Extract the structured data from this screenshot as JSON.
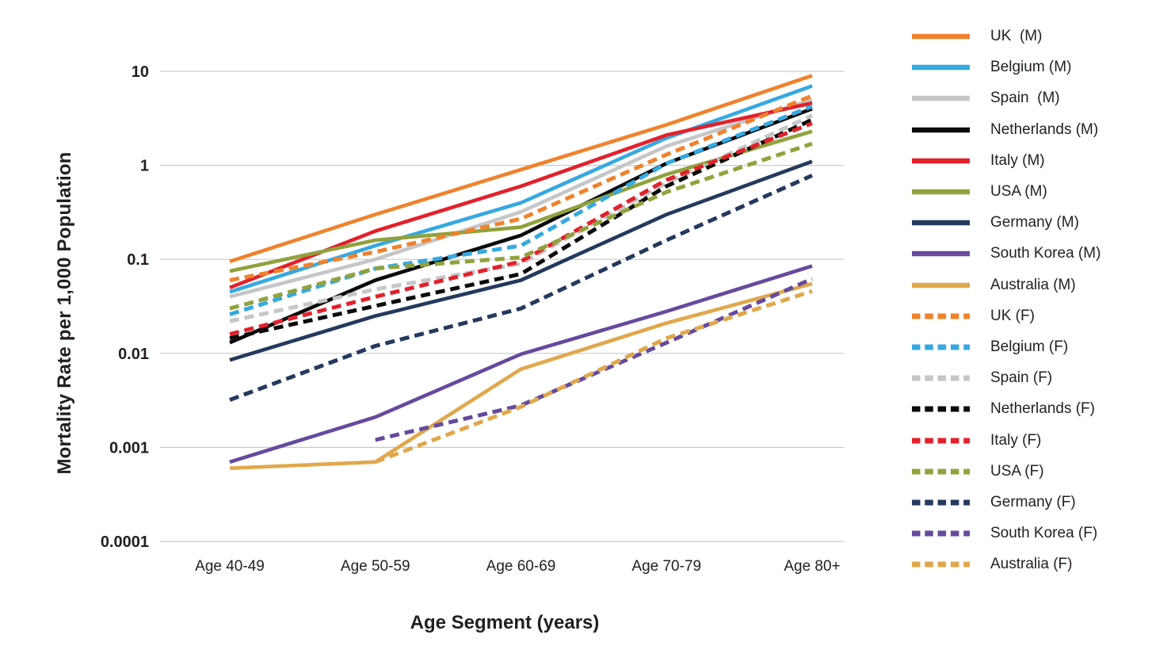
{
  "page": {
    "background": "#FFFFFF",
    "text_color": "#231F20",
    "grid_color": "#C9CACB"
  },
  "chart_data": {
    "type": "line",
    "title": "",
    "x_axis": {
      "title": "Age Segment (years)",
      "categories": [
        "Age 40-49",
        "Age 50-59",
        "Age 60-69",
        "Age 70-79",
        "Age 80+"
      ]
    },
    "y_axis": {
      "title": "Mortality Rate per 1,000 Population",
      "scale": "log",
      "range": [
        0.0001,
        10
      ],
      "ticks": [
        {
          "label": "10",
          "value": 10
        },
        {
          "label": "1",
          "value": 1
        },
        {
          "label": "0.1",
          "value": 0.1
        },
        {
          "label": "0.01",
          "value": 0.01
        },
        {
          "label": "0.001",
          "value": 0.001
        },
        {
          "label": "0.0001",
          "value": 0.0001
        }
      ]
    },
    "grid": true,
    "legend_position": "right",
    "series": [
      {
        "name": "UK  (M)",
        "country": "UK",
        "sex": "M",
        "color": "#F0822C",
        "dash": false,
        "values": [
          0.095,
          0.3,
          0.9,
          2.7,
          9
        ]
      },
      {
        "name": "Belgium (M)",
        "country": "Belgium",
        "sex": "M",
        "color": "#35A9E1",
        "dash": false,
        "values": [
          0.045,
          0.14,
          0.4,
          1.95,
          7
        ]
      },
      {
        "name": "Spain  (M)",
        "country": "Spain",
        "sex": "M",
        "color": "#C5C6C8",
        "dash": false,
        "values": [
          0.04,
          0.1,
          0.32,
          1.6,
          5
        ]
      },
      {
        "name": "Netherlands (M)",
        "country": "Netherlands",
        "sex": "M",
        "color": "#0B0B0B",
        "dash": false,
        "values": [
          0.013,
          0.06,
          0.18,
          1.05,
          4
        ]
      },
      {
        "name": "Italy (M)",
        "country": "Italy",
        "sex": "M",
        "color": "#E3212B",
        "dash": false,
        "values": [
          0.05,
          0.2,
          0.6,
          2.1,
          4.6
        ]
      },
      {
        "name": "USA (M)",
        "country": "USA",
        "sex": "M",
        "color": "#90A23C",
        "dash": false,
        "values": [
          0.075,
          0.16,
          0.22,
          0.8,
          2.3
        ]
      },
      {
        "name": "Germany (M)",
        "country": "Germany",
        "sex": "M",
        "color": "#24395E",
        "dash": false,
        "values": [
          0.0085,
          0.025,
          0.06,
          0.3,
          1.1
        ]
      },
      {
        "name": "South Korea (M)",
        "country": "South Korea",
        "sex": "M",
        "color": "#664A9E",
        "dash": false,
        "values": [
          0.0007,
          0.0021,
          0.0098,
          0.028,
          0.085
        ]
      },
      {
        "name": "Australia (M)",
        "country": "Australia",
        "sex": "M",
        "color": "#E1A74B",
        "dash": false,
        "values": [
          0.0006,
          0.0007,
          0.0068,
          0.021,
          0.055
        ]
      },
      {
        "name": "UK (F)",
        "country": "UK",
        "sex": "F",
        "color": "#F0822C",
        "dash": true,
        "values": [
          0.06,
          0.12,
          0.27,
          1.3,
          5.5
        ]
      },
      {
        "name": "Belgium (F)",
        "country": "Belgium",
        "sex": "F",
        "color": "#35A9E1",
        "dash": true,
        "values": [
          0.026,
          0.08,
          0.14,
          1.05,
          4.25
        ]
      },
      {
        "name": "Spain (F)",
        "country": "Spain",
        "sex": "F",
        "color": "#C5C6C8",
        "dash": true,
        "values": [
          0.022,
          0.048,
          0.09,
          0.65,
          3.4
        ]
      },
      {
        "name": "Netherlands (F)",
        "country": "Netherlands",
        "sex": "F",
        "color": "#0B0B0B",
        "dash": true,
        "values": [
          0.0145,
          0.032,
          0.07,
          0.6,
          3.05
        ]
      },
      {
        "name": "Italy (F)",
        "country": "Italy",
        "sex": "F",
        "color": "#E3212B",
        "dash": true,
        "values": [
          0.016,
          0.04,
          0.095,
          0.7,
          2.8
        ]
      },
      {
        "name": "USA (F)",
        "country": "USA",
        "sex": "F",
        "color": "#90A23C",
        "dash": true,
        "values": [
          0.03,
          0.08,
          0.105,
          0.52,
          1.7
        ]
      },
      {
        "name": "Germany (F)",
        "country": "Germany",
        "sex": "F",
        "color": "#24395E",
        "dash": true,
        "values": [
          0.0032,
          0.012,
          0.03,
          0.16,
          0.78
        ]
      },
      {
        "name": "South Korea (F)",
        "country": "South Korea",
        "sex": "F",
        "color": "#664A9E",
        "dash": true,
        "values": [
          null,
          0.0012,
          0.0028,
          0.013,
          0.062
        ]
      },
      {
        "name": "Australia (F)",
        "country": "Australia",
        "sex": "F",
        "color": "#E1A74B",
        "dash": true,
        "values": [
          null,
          0.0007,
          0.0027,
          0.0145,
          0.046
        ]
      }
    ]
  }
}
